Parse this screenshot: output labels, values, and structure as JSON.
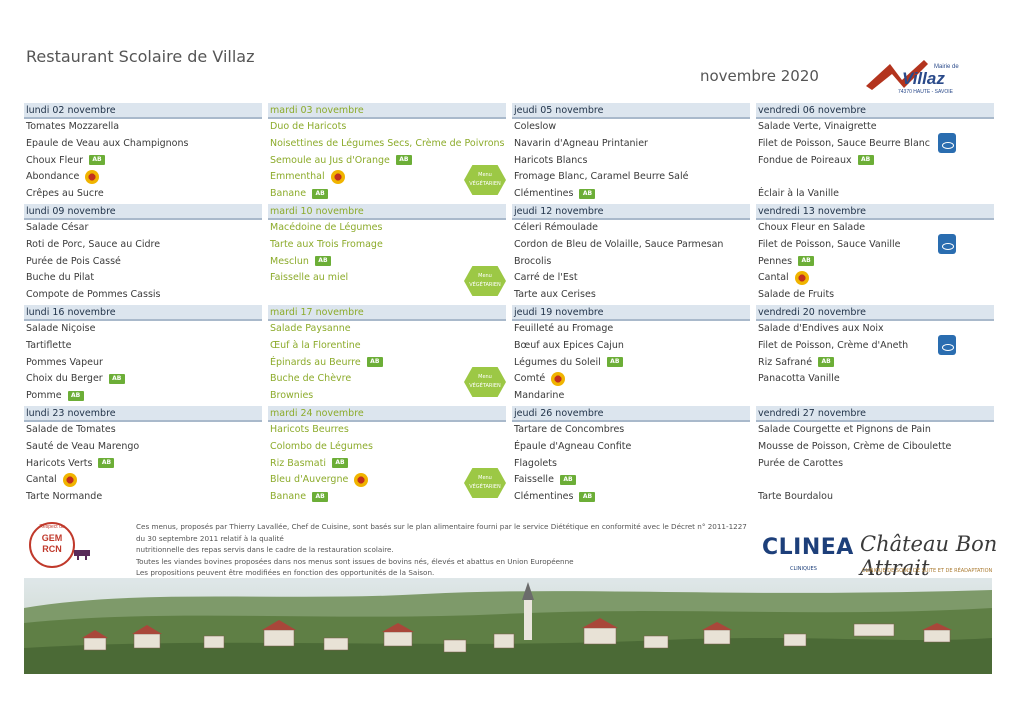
{
  "header": {
    "title": "Restaurant Scolaire de Villaz",
    "period": "novembre 2020",
    "logo_text": "Mairie de Villaz 74370 HAUTE - SAVOIE"
  },
  "weeks": [
    {
      "days": [
        {
          "label": "lundi 02 novembre",
          "style": "normal",
          "items": [
            {
              "text": "Tomates Mozzarella"
            },
            {
              "text": "Epaule de Veau aux Champignons"
            },
            {
              "text": "Choux Fleur",
              "badge": "bio"
            },
            {
              "text": "Abondance",
              "badge": "aop"
            },
            {
              "text": "Crêpes au Sucre"
            }
          ]
        },
        {
          "label": "mardi 03 novembre",
          "style": "green",
          "veg": true,
          "items": [
            {
              "text": "Duo de Haricots"
            },
            {
              "text": "Noisettines de Légumes Secs, Crème de Poivrons"
            },
            {
              "text": "Semoule au Jus d'Orange",
              "badge": "bio"
            },
            {
              "text": "Emmenthal",
              "badge": "aop"
            },
            {
              "text": "Banane",
              "badge": "bio"
            }
          ]
        },
        {
          "label": "jeudi 05 novembre",
          "style": "normal",
          "items": [
            {
              "text": "Coleslow"
            },
            {
              "text": "Navarin d'Agneau Printanier"
            },
            {
              "text": "Haricots Blancs"
            },
            {
              "text": "Fromage Blanc, Caramel Beurre Salé"
            },
            {
              "text": "Clémentines",
              "badge": "bio"
            }
          ]
        },
        {
          "label": "vendredi 06 novembre",
          "style": "normal",
          "msc": true,
          "items": [
            {
              "text": "Salade Verte, Vinaigrette"
            },
            {
              "text": "Filet de Poisson, Sauce Beurre Blanc"
            },
            {
              "text": "Fondue de Poireaux",
              "badge": "bio"
            },
            {
              "text": ""
            },
            {
              "text": "Éclair à la Vanille"
            }
          ]
        }
      ]
    },
    {
      "days": [
        {
          "label": "lundi 09 novembre",
          "style": "normal",
          "items": [
            {
              "text": "Salade César"
            },
            {
              "text": "Roti de Porc, Sauce au Cidre"
            },
            {
              "text": "Purée de Pois Cassé"
            },
            {
              "text": "Buche du Pilat"
            },
            {
              "text": "Compote de Pommes Cassis"
            }
          ]
        },
        {
          "label": "mardi 10 novembre",
          "style": "green",
          "veg": true,
          "items": [
            {
              "text": "Macédoine de Légumes"
            },
            {
              "text": "Tarte aux Trois Fromage"
            },
            {
              "text": "Mesclun",
              "badge": "bio"
            },
            {
              "text": "Faisselle au miel"
            },
            {
              "text": ""
            }
          ]
        },
        {
          "label": "jeudi 12 novembre",
          "style": "normal",
          "items": [
            {
              "text": "Céleri Rémoulade"
            },
            {
              "text": "Cordon de Bleu de Volaille, Sauce Parmesan"
            },
            {
              "text": "Brocolis"
            },
            {
              "text": "Carré de l'Est"
            },
            {
              "text": "Tarte aux Cerises"
            }
          ]
        },
        {
          "label": "vendredi 13 novembre",
          "style": "normal",
          "msc": true,
          "items": [
            {
              "text": "Choux Fleur en Salade"
            },
            {
              "text": "Filet de Poisson, Sauce Vanille"
            },
            {
              "text": "Pennes",
              "badge": "bio"
            },
            {
              "text": "Cantal",
              "badge": "aop"
            },
            {
              "text": "Salade de Fruits"
            }
          ]
        }
      ]
    },
    {
      "days": [
        {
          "label": "lundi 16 novembre",
          "style": "normal",
          "items": [
            {
              "text": "Salade Niçoise"
            },
            {
              "text": "Tartiflette"
            },
            {
              "text": "Pommes Vapeur"
            },
            {
              "text": "Choix du Berger",
              "badge": "bio"
            },
            {
              "text": "Pomme",
              "badge": "bio"
            }
          ]
        },
        {
          "label": "mardi 17 novembre",
          "style": "green",
          "veg": true,
          "items": [
            {
              "text": "Salade Paysanne"
            },
            {
              "text": "Œuf à la Florentine"
            },
            {
              "text": "Épinards au Beurre",
              "badge": "bio"
            },
            {
              "text": "Buche de Chèvre"
            },
            {
              "text": "Brownies"
            }
          ]
        },
        {
          "label": "jeudi 19 novembre",
          "style": "normal",
          "items": [
            {
              "text": "Feuilleté au Fromage"
            },
            {
              "text": "Bœuf aux Epices Cajun"
            },
            {
              "text": "Légumes du Soleil",
              "badge": "bio"
            },
            {
              "text": "Comté",
              "badge": "aop"
            },
            {
              "text": "Mandarine"
            }
          ]
        },
        {
          "label": "vendredi 20 novembre",
          "style": "normal",
          "msc": true,
          "items": [
            {
              "text": "Salade d'Endives aux Noix"
            },
            {
              "text": "Filet de Poisson, Crème d'Aneth"
            },
            {
              "text": "Riz Safrané",
              "badge": "bio"
            },
            {
              "text": "Panacotta Vanille"
            },
            {
              "text": ""
            }
          ]
        }
      ]
    },
    {
      "days": [
        {
          "label": "lundi 23 novembre",
          "style": "normal",
          "items": [
            {
              "text": "Salade de Tomates"
            },
            {
              "text": "Sauté de Veau Marengo"
            },
            {
              "text": "Haricots Verts",
              "badge": "bio"
            },
            {
              "text": "Cantal",
              "badge": "aop"
            },
            {
              "text": "Tarte Normande"
            }
          ]
        },
        {
          "label": "mardi 24 novembre",
          "style": "green",
          "veg": true,
          "items": [
            {
              "text": "Haricots Beurres"
            },
            {
              "text": "Colombo de Légumes"
            },
            {
              "text": "Riz Basmati",
              "badge": "bio"
            },
            {
              "text": "Bleu d'Auvergne",
              "badge": "aop"
            },
            {
              "text": "Banane",
              "badge": "bio"
            }
          ]
        },
        {
          "label": "jeudi 26 novembre",
          "style": "normal",
          "items": [
            {
              "text": "Tartare de Concombres"
            },
            {
              "text": "Épaule d'Agneau Confite"
            },
            {
              "text": "Flagolets"
            },
            {
              "text": "Faisselle",
              "badge": "bio"
            },
            {
              "text": "Clémentines",
              "badge": "bio"
            }
          ]
        },
        {
          "label": "vendredi 27 novembre",
          "style": "normal",
          "items": [
            {
              "text": "Salade Courgette et Pignons de Pain"
            },
            {
              "text": "Mousse de Poisson, Crème de Ciboulette"
            },
            {
              "text": "Purée de Carottes"
            },
            {
              "text": ""
            },
            {
              "text": "Tarte Bourdalou"
            }
          ]
        }
      ]
    }
  ],
  "badges": {
    "bio": "AB",
    "veg": "Menu VÉGÉTARIEN"
  },
  "footer": {
    "gem_text": "Respect du GEM RCN",
    "lines": [
      "Ces menus, proposés par Thierry Lavallée, Chef de Cuisine, sont basés sur le plan alimentaire fourni par le service Diététique en conformité avec le Décret n° 2011-1227 du 30 septembre 2011 relatif à la qualité",
      "nutritionnelle des repas servis dans le cadre de la restauration scolaire.",
      "Toutes les viandes bovines proposées dans nos menus sont issues de bovins nés, élevés et abattus en Union Européenne",
      "Les propositions peuvent être modifiées en fonction des opportunités de la Saison."
    ],
    "clinea": "CLINEA",
    "clinea_sub": "CLINIQUES",
    "bon_attrait": "Château Bon Attrait",
    "bon_attrait_sub": "CLINIQUE DE SOINS DE SUITE ET DE RÉADAPTATION"
  },
  "colors": {
    "header_band": "#dce5ee",
    "green_day": "#8cab2b",
    "bio_green": "#6cae37"
  }
}
